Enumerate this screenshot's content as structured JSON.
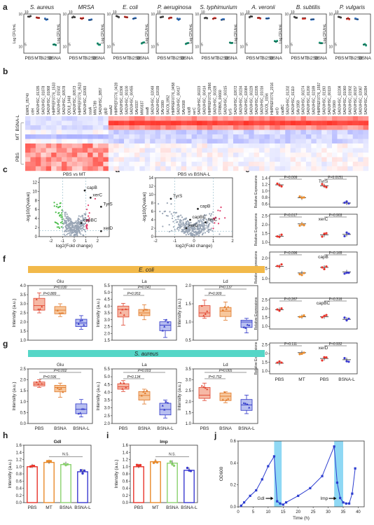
{
  "panel_letters": [
    "a",
    "b",
    "c",
    "d",
    "e",
    "f",
    "g",
    "h",
    "i",
    "j"
  ],
  "chart_data": [
    {
      "id": "a",
      "type": "scatter",
      "ylabel": "Log CFU/mL",
      "categories": [
        "PBS",
        "MT",
        "Bi2S3",
        "BSNA"
      ],
      "subplots": [
        {
          "title": "S. aureus",
          "values": [
            9.6,
            9.4,
            9.2,
            5.3
          ]
        },
        {
          "title": "MRSA",
          "values": [
            9.5,
            9.3,
            9.1,
            5.4
          ]
        },
        {
          "title": "E. coli",
          "values": [
            9.6,
            9.5,
            9.3,
            5.6
          ]
        },
        {
          "title": "P. aeruginosa",
          "values": [
            9.5,
            9.4,
            9.2,
            5.5
          ]
        },
        {
          "title": "S. typhimurium",
          "values": [
            9.4,
            9.3,
            9.1,
            5.6
          ]
        },
        {
          "title": "A. veronii",
          "values": [
            9.6,
            9.4,
            9.3,
            5.8
          ]
        },
        {
          "title": "B. subtilis",
          "values": [
            9.5,
            9.4,
            9.2,
            5.5
          ]
        },
        {
          "title": "P. vulgaris",
          "values": [
            9.5,
            9.3,
            9.2,
            5.3
          ]
        }
      ]
    },
    {
      "id": "b",
      "type": "heatmap",
      "row_labels": [
        "BSNA-L",
        "MT",
        "PBS"
      ],
      "gene_labels": [
        "EMKS_05740",
        "crtH",
        "SAOUHSC_01335",
        "SAOUHSC_01878",
        "SAOUHSC_01868",
        "HMPREF0776_1533",
        "SAOUHSC_01502",
        "SAOUHSC_00578",
        "QOL8_1468",
        "SAOUHSC_00573",
        "HMPREF0776_0523",
        "SAOUHSC_02093",
        "ssaA",
        "MW1789",
        "SAOUHSC_3857",
        "glpD",
        "ssaA2",
        "HMPREF0776_0428",
        "SAOUHSC_02306",
        "SAOUHSC_00100",
        "SAOUHSC_00455",
        "SAV0337",
        "MW0337",
        "ssaB",
        "SAOUHSC_02048",
        "SAOUHSC_02039",
        "SAV1980",
        "SACOL1952",
        "HMPREF0776_0458",
        "SAOUHSC_00417",
        "SAV0368",
        "capB",
        "xerC",
        "SAOUHSC_00223",
        "SAOUHSC_00414",
        "HMPREF0776_2866",
        "SAOUHSC_00328",
        "STRB05_00660",
        "SAOUHSC_00315",
        "tyrS",
        "SAOUHSC_02672",
        "SAOUHSC_00234",
        "SAOUHSC_02084",
        "SAOUHSC_00229",
        "SAOUHSC_02205",
        "SAOUHSC_01016",
        "SACOL_0156",
        "HMPREF0776_2316",
        "xerD",
        "capBC",
        "SAOUHSC_01202",
        "SAOUHSC_01110",
        "SAV1959",
        "SAOUHSC_00274",
        "SAOUHSC_01200",
        "SAOUHSC_02189",
        "HMPREF0776_1557",
        "SAOUHSC_01193",
        "SAOUHSC_00119",
        "SAV1960",
        "SAOUHSC_02208",
        "SAOUHSC_01060",
        "SAOUHSC_01902",
        "SAOUHSC_00157",
        "SAOUHSC_02087",
        "SAOUHSC_00284"
      ]
    },
    {
      "id": "c",
      "type": "scatter",
      "title": "PBS vs MT",
      "xlabel": "log2(Fold change)",
      "ylabel": "-log10(Qvalue)",
      "xlim": [
        -3,
        3
      ],
      "ylim": [
        0,
        13
      ],
      "annotations": [
        {
          "label": "capB",
          "x": 0.9,
          "y": 10.2
        },
        {
          "label": "xerC",
          "x": 1.4,
          "y": 8.6
        },
        {
          "label": "TyrS",
          "x": 2.3,
          "y": 6.6
        },
        {
          "label": "capBC",
          "x": 0.6,
          "y": 3.0
        },
        {
          "label": "xerD",
          "x": 2.3,
          "y": 1.2
        }
      ]
    },
    {
      "id": "d",
      "type": "scatter",
      "title": "PBS vs BSNA-L",
      "xlabel": "log2(Fold change)",
      "ylabel": "-log10(Qvalue)",
      "xlim": [
        -2,
        2
      ],
      "ylim": [
        0,
        14
      ],
      "annotations": [
        {
          "label": "TyrS",
          "x": -1.2,
          "y": 9.0
        },
        {
          "label": "capB",
          "x": 0.2,
          "y": 6.6
        },
        {
          "label": "capBC",
          "x": -0.2,
          "y": 4.0
        },
        {
          "label": "xerC",
          "x": 0.6,
          "y": 3.4
        },
        {
          "label": "xerD",
          "x": -0.4,
          "y": 2.0
        }
      ]
    },
    {
      "id": "e",
      "type": "scatter",
      "ylabel": "Relative Expressions",
      "categories": [
        "PBS",
        "MT",
        "PBS",
        "BSNA-L"
      ],
      "subplots": [
        {
          "title": "TyrS",
          "yticks": [
            "0.6",
            "0.8",
            "1.0",
            "1.2",
            "1.4"
          ],
          "ylim": [
            0.5,
            1.45
          ],
          "means": [
            1.19,
            0.79,
            1.16,
            0.63
          ],
          "pvals": [
            "P=0.009",
            "P=0.0151"
          ]
        },
        {
          "title": "xerC",
          "yticks": [
            "1.0",
            "1.5",
            "2.0",
            "2.5"
          ],
          "ylim": [
            0.85,
            2.6
          ],
          "means": [
            1.35,
            2.05,
            1.42,
            1.45
          ],
          "pvals": [
            "P=0.017",
            "P=0.903"
          ]
        },
        {
          "title": "capB",
          "yticks": [
            "1.0",
            "1.5",
            "2.0"
          ],
          "ylim": [
            0.8,
            2.3
          ],
          "means": [
            1.6,
            1.28,
            1.55,
            1.33
          ],
          "pvals": [
            "P=0.096",
            "P=0.165"
          ]
        },
        {
          "title": "capBC",
          "yticks": [
            "1.0",
            "1.5",
            "2.0",
            "2.5"
          ],
          "ylim": [
            0.85,
            2.6
          ],
          "means": [
            1.95,
            1.55,
            1.55,
            1.4
          ],
          "pvals": [
            "P=0.267",
            "P=0.316"
          ]
        },
        {
          "title": "xerD",
          "yticks": [
            "1.0",
            "1.5",
            "2.0",
            "2.5"
          ],
          "ylim": [
            0.85,
            2.6
          ],
          "means": [
            1.45,
            2.05,
            1.72,
            1.65
          ],
          "pvals": [
            "P=0.111",
            "P=0.932"
          ]
        }
      ]
    },
    {
      "id": "f",
      "type": "box",
      "group_label": "E. coli",
      "ylabel": "Intensity (a.u.)",
      "categories": [
        "PBS",
        "BSNA",
        "BSNA-L"
      ],
      "subplots": [
        {
          "title": "Glu",
          "ylim": [
            1.0,
            4.0
          ],
          "yticks": [
            "1.0",
            "1.5",
            "2.0",
            "2.5",
            "3.0",
            "3.5",
            "4.0"
          ],
          "boxes": [
            [
              2.5,
              2.65,
              2.9,
              3.3,
              3.6
            ],
            [
              2.3,
              2.45,
              2.65,
              2.85,
              3.0
            ],
            [
              1.6,
              1.75,
              1.95,
              2.15,
              2.35
            ]
          ],
          "pvals": [
            "P=0.030",
            "P=0.889"
          ]
        },
        {
          "title": "La",
          "ylim": [
            1.5,
            5.5
          ],
          "yticks": [
            "1.5",
            "2.0",
            "2.5",
            "3.0",
            "3.5",
            "4.0",
            "4.5",
            "5.0",
            "5.5"
          ],
          "boxes": [
            [
              2.6,
              3.2,
              3.75,
              4.0,
              4.2
            ],
            [
              3.0,
              3.3,
              3.5,
              3.75,
              4.1
            ],
            [
              1.7,
              2.2,
              2.6,
              2.85,
              3.0
            ]
          ],
          "pvals": [
            "P=0.041",
            "P=0.953"
          ]
        },
        {
          "title": "Ld",
          "ylim": [
            0.5,
            2.0
          ],
          "yticks": [
            "0.5",
            "1.0",
            "1.5",
            "2.0"
          ],
          "boxes": [
            [
              1.1,
              1.15,
              1.25,
              1.45,
              1.6
            ],
            [
              1.05,
              1.15,
              1.3,
              1.4,
              1.55
            ],
            [
              0.7,
              0.85,
              1.0,
              1.05,
              1.1
            ]
          ],
          "pvals": [
            "P=0.137",
            "P=0.909"
          ]
        }
      ]
    },
    {
      "id": "g",
      "type": "box",
      "group_label": "S. aureus",
      "ylabel": "Intensity (a.u.)",
      "categories": [
        "PBS",
        "BSNA",
        "BSNA-L"
      ],
      "subplots": [
        {
          "title": "Glu",
          "ylim": [
            0.0,
            2.5
          ],
          "yticks": [
            "0.0",
            "0.5",
            "1.0",
            "1.5",
            "2.0",
            "2.5"
          ],
          "boxes": [
            [
              1.65,
              1.72,
              1.8,
              1.9,
              2.0
            ],
            [
              1.2,
              1.45,
              1.65,
              1.75,
              1.85
            ],
            [
              0.3,
              0.45,
              0.65,
              0.9,
              1.1
            ]
          ],
          "pvals": [
            "P=0.002",
            "P=0.596"
          ]
        },
        {
          "title": "La",
          "ylim": [
            2.0,
            5.5
          ],
          "yticks": [
            "2.0",
            "2.5",
            "3.0",
            "3.5",
            "4.0",
            "4.5",
            "5.0",
            "5.5"
          ],
          "boxes": [
            [
              4.05,
              4.2,
              4.35,
              4.55,
              4.75
            ],
            [
              3.25,
              3.5,
              3.8,
              4.05,
              4.2
            ],
            [
              2.35,
              2.55,
              2.9,
              3.3,
              3.5
            ]
          ],
          "pvals": [
            "P=0.003",
            "P=0.134"
          ]
        },
        {
          "title": "Ld",
          "ylim": [
            1.0,
            3.5
          ],
          "yticks": [
            "1.0",
            "1.5",
            "2.0",
            "2.5",
            "3.0",
            "3.5"
          ],
          "boxes": [
            [
              2.05,
              2.15,
              2.3,
              2.65,
              2.85
            ],
            [
              1.95,
              2.05,
              2.25,
              2.4,
              2.45
            ],
            [
              1.45,
              1.6,
              1.85,
              2.1,
              2.3
            ]
          ],
          "pvals": [
            "P=0.065",
            "P=0.752"
          ]
        }
      ]
    },
    {
      "id": "h",
      "type": "bar",
      "title": "Gdl",
      "ylabel": "Intensity (a.u.)",
      "categories": [
        "PBS",
        "MT",
        "BSNA",
        "BSNA-L"
      ],
      "values": [
        1.0,
        1.12,
        1.06,
        0.86
      ],
      "colors": [
        "#e8332a",
        "#e98a2a",
        "#8ad16e",
        "#3a3ad0"
      ],
      "ylim": [
        0.0,
        1.6
      ],
      "yticks": [
        "0.0",
        "0.2",
        "0.4",
        "0.6",
        "0.8",
        "1.0",
        "1.2",
        "1.4",
        "1.6"
      ],
      "sig": "N.S."
    },
    {
      "id": "i",
      "type": "bar",
      "title": "Imp",
      "ylabel": "Intensity (a.u.)",
      "categories": [
        "PBS",
        "MT",
        "BSNA",
        "BSNA-L"
      ],
      "values": [
        1.0,
        1.14,
        1.1,
        0.9
      ],
      "colors": [
        "#e8332a",
        "#e98a2a",
        "#8ad16e",
        "#3a3ad0"
      ],
      "ylim": [
        0.0,
        1.6
      ],
      "yticks": [
        "0.0",
        "0.2",
        "0.4",
        "0.6",
        "0.8",
        "1.0",
        "1.2",
        "1.4",
        "1.6"
      ],
      "sig": "N.S."
    },
    {
      "id": "j",
      "type": "line",
      "xlabel": "Time (h)",
      "ylabel": "OD600",
      "xlim": [
        0,
        42
      ],
      "ylim": [
        0,
        0.6
      ],
      "xticks": [
        "0",
        "5",
        "10",
        "15",
        "20",
        "25",
        "30",
        "35",
        "40"
      ],
      "yticks": [
        "0.0",
        "0.2",
        "0.4",
        "0.6"
      ],
      "x": [
        1,
        2,
        4,
        6,
        8,
        10,
        12,
        13,
        14,
        15,
        16,
        20,
        24,
        28,
        32,
        33,
        34,
        35,
        36,
        37,
        38,
        39
      ],
      "y": [
        0.01,
        0.04,
        0.1,
        0.15,
        0.25,
        0.37,
        0.46,
        0.05,
        0.03,
        0.02,
        0.04,
        0.1,
        0.17,
        0.28,
        0.55,
        0.22,
        0.08,
        0.04,
        0.03,
        0.03,
        0.12,
        0.35
      ],
      "highlight_x": [
        [
          12,
          14.5
        ],
        [
          32,
          35
        ]
      ],
      "annotations": [
        {
          "label": "Gdl",
          "x": 12
        },
        {
          "label": "Imp",
          "x": 33
        }
      ]
    }
  ]
}
